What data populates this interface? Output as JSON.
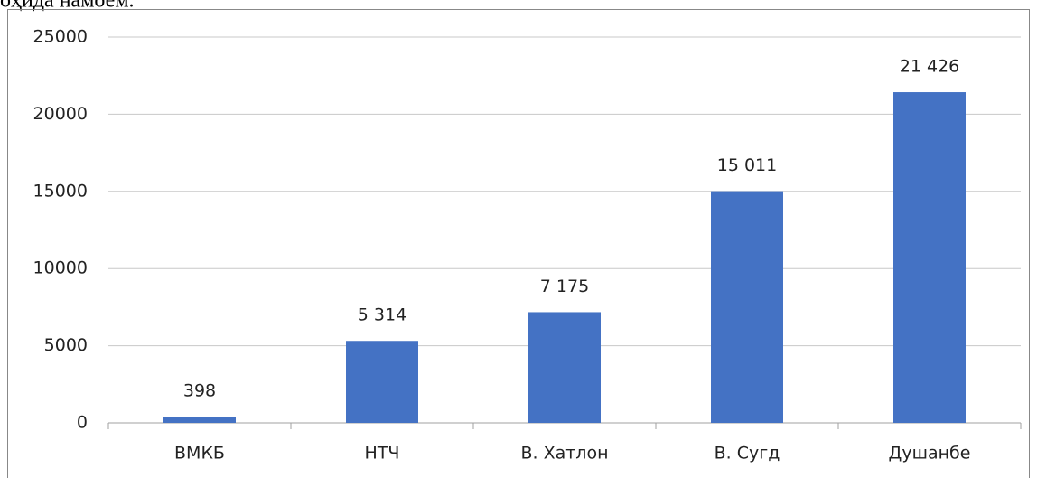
{
  "page_text": "оҳида намоем.",
  "chart_data": {
    "type": "bar",
    "categories": [
      "ВМКБ",
      "НТЧ",
      "В. Хатлон",
      "В. Сугд",
      "Душанбе"
    ],
    "values": [
      398,
      5314,
      7175,
      15011,
      21426
    ],
    "value_labels": [
      "398",
      "5 314",
      "7 175",
      "15 011",
      "21 426"
    ],
    "color": "#4472c4",
    "ylim": [
      0,
      25000
    ],
    "yticks": [
      0,
      5000,
      10000,
      15000,
      20000,
      25000
    ],
    "grid": true
  }
}
